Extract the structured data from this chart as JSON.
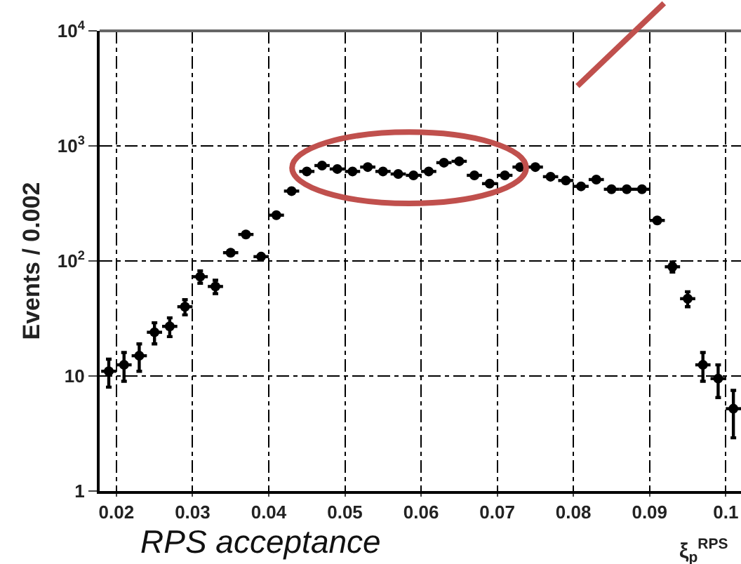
{
  "chart_data": {
    "type": "scatter",
    "xlabel": "ξ$_{p}$$^{RPS}$",
    "ylabel": "Events / 0.002",
    "annotations": [
      "RPS acceptance"
    ],
    "x": [
      0.019,
      0.021,
      0.023,
      0.025,
      0.027,
      0.029,
      0.031,
      0.033,
      0.035,
      0.037,
      0.039,
      0.041,
      0.043,
      0.045,
      0.047,
      0.049,
      0.051,
      0.053,
      0.055,
      0.057,
      0.059,
      0.061,
      0.063,
      0.065,
      0.067,
      0.069,
      0.071,
      0.073,
      0.075,
      0.077,
      0.079,
      0.081,
      0.083,
      0.085,
      0.087,
      0.089,
      0.091,
      0.093,
      0.095,
      0.097,
      0.099,
      0.101
    ],
    "series": [
      {
        "color": "#000000",
        "values": [
          11,
          12.5,
          15,
          24,
          27,
          40,
          73,
          60,
          118,
          170,
          109,
          250,
          405,
          600,
          675,
          630,
          600,
          655,
          600,
          570,
          555,
          600,
          715,
          735,
          555,
          470,
          555,
          655,
          655,
          540,
          500,
          445,
          510,
          420,
          420,
          420,
          225,
          89,
          47,
          12.5,
          9.5,
          5.2
        ],
        "errors": [
          3,
          3.5,
          4,
          5,
          5,
          6,
          9,
          8,
          null,
          null,
          null,
          null,
          null,
          null,
          null,
          null,
          null,
          null,
          null,
          null,
          null,
          null,
          null,
          null,
          null,
          null,
          null,
          null,
          null,
          null,
          null,
          null,
          null,
          null,
          null,
          null,
          null,
          9,
          7,
          3.5,
          3,
          2.3
        ],
        "xerrors": [
          0.001,
          0.001,
          0.001,
          0.001,
          0.001,
          0.001,
          0.001,
          0.001,
          0.001,
          0.001,
          0.001,
          0.001,
          0.001,
          0.001,
          0.001,
          0.001,
          0.001,
          0.001,
          0.001,
          0.001,
          0.001,
          0.001,
          0.001,
          0.001,
          0.001,
          0.001,
          0.001,
          0.001,
          0.001,
          0.001,
          0.001,
          0.001,
          0.001,
          0.001,
          0.001,
          0.001,
          0.001,
          0.001,
          0.001,
          0.001,
          0.001,
          0.001
        ]
      }
    ],
    "xlim": [
      0.0178,
      0.102
    ],
    "xticks": [
      0.02,
      0.03,
      0.04,
      0.05,
      0.06,
      0.07,
      0.08,
      0.09,
      {
        "value": 0.1,
        "label": "0.1"
      }
    ],
    "ylim": [
      1,
      10000
    ],
    "yticks": [
      1,
      10,
      {
        "value": 100,
        "label": "10$^{2}$"
      },
      {
        "value": 1000,
        "label": "10$^{3}$"
      },
      {
        "value": 10000,
        "label": "10$^{4}$"
      }
    ],
    "log": "y",
    "grid": true,
    "marker": "circle",
    "legend": false
  }
}
